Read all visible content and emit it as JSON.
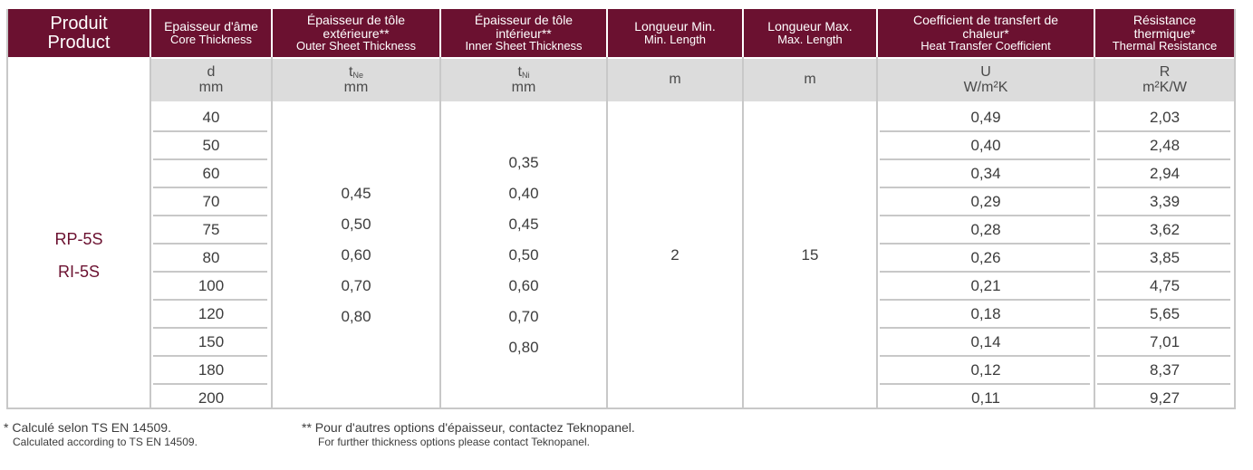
{
  "headers": [
    {
      "fr": "Produit",
      "en": "Product"
    },
    {
      "fr": "Epaisseur d'âme",
      "en": "Core Thickness"
    },
    {
      "fr": "Épaisseur de tôle extérieure**",
      "en": "Outer Sheet Thickness"
    },
    {
      "fr": "Épaisseur de tôle intérieur**",
      "en": "Inner Sheet Thickness"
    },
    {
      "fr": "Longueur Min.",
      "en": "Min. Length"
    },
    {
      "fr": "Longueur Max.",
      "en": "Max. Length"
    },
    {
      "fr": "Coefficient de transfert de chaleur*",
      "en": "Heat Transfer Coefficient"
    },
    {
      "fr": "Résistance thermique*",
      "en": "Thermal Resistance"
    }
  ],
  "units": [
    {
      "symbol": "d",
      "sub": "",
      "unit": "mm"
    },
    {
      "symbol": "t",
      "sub": "Ne",
      "unit": "mm"
    },
    {
      "symbol": "t",
      "sub": "Ni",
      "unit": "mm"
    },
    {
      "symbol": "",
      "sub": "",
      "unit": "m"
    },
    {
      "symbol": "",
      "sub": "",
      "unit": "m"
    },
    {
      "symbol": "U",
      "sub": "",
      "unit": "W/m²K"
    },
    {
      "symbol": "R",
      "sub": "",
      "unit": "m²K/W"
    }
  ],
  "products": [
    "RP-5S",
    "RI-5S"
  ],
  "core_thickness": [
    "40",
    "50",
    "60",
    "70",
    "75",
    "80",
    "100",
    "120",
    "150",
    "180",
    "200"
  ],
  "outer_sheet": [
    "0,45",
    "0,50",
    "0,60",
    "0,70",
    "0,80"
  ],
  "inner_sheet": [
    "0,35",
    "0,40",
    "0,45",
    "0,50",
    "0,60",
    "0,70",
    "0,80"
  ],
  "min_length": "2",
  "max_length": "15",
  "u_values": [
    "0,49",
    "0,40",
    "0,34",
    "0,29",
    "0,28",
    "0,26",
    "0,21",
    "0,18",
    "0,14",
    "0,12",
    "0,11"
  ],
  "r_values": [
    "2,03",
    "2,48",
    "2,94",
    "3,39",
    "3,62",
    "3,85",
    "4,75",
    "5,65",
    "7,01",
    "8,37",
    "9,27"
  ],
  "footnotes": {
    "calc_fr": "* Calculé selon TS EN 14509.",
    "calc_en": "Calculated according to TS EN 14509.",
    "options_fr": "** Pour d'autres options d'épaisseur, contactez Teknopanel.",
    "options_en": "For further thickness options please contact Teknopanel."
  },
  "colors": {
    "header_bg": "#6b1130",
    "unit_bg": "#dcdcdc",
    "product_text": "#6b1130"
  }
}
